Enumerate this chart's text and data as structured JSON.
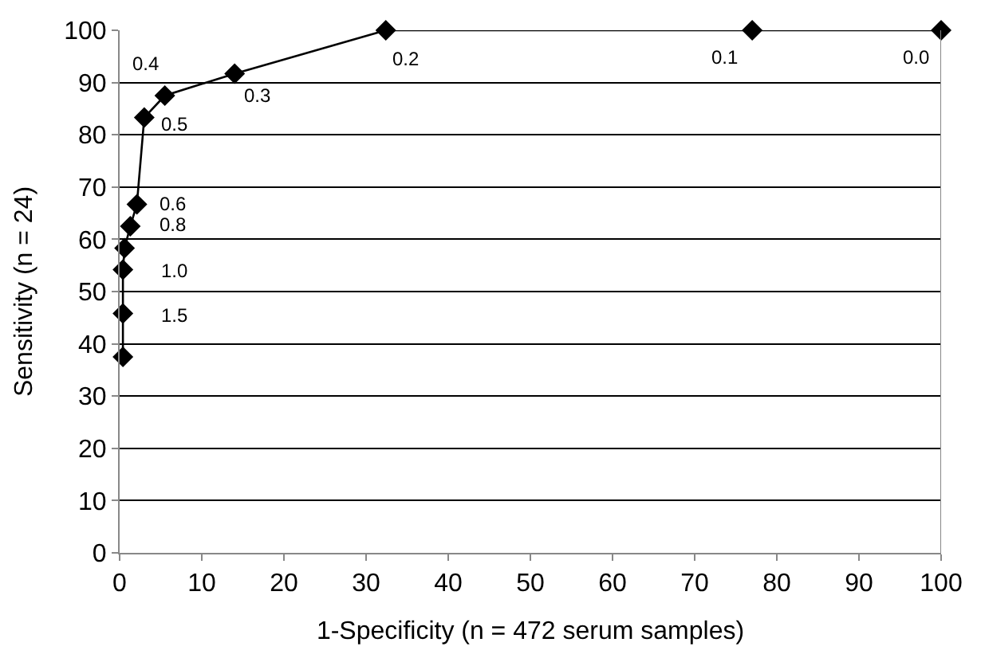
{
  "chart_data": {
    "type": "line",
    "xlabel": "1-Specificity (n = 472 serum samples)",
    "ylabel": "Sensitivity (n = 24)",
    "series": [
      {
        "color": "#000000",
        "x": [
          0.4,
          0.4,
          0.4,
          0.6,
          1.3,
          2.1,
          3.0,
          5.5,
          14,
          32.4,
          77,
          100
        ],
        "values": [
          37.5,
          45.8,
          54.2,
          58.3,
          62.5,
          66.7,
          83.3,
          87.5,
          91.7,
          100,
          100,
          100
        ]
      }
    ],
    "xlim": [
      0,
      100
    ],
    "xticks": [
      0,
      10,
      20,
      30,
      40,
      50,
      60,
      70,
      80,
      90,
      100
    ],
    "ylim": [
      0,
      100
    ],
    "yticks": [
      0,
      10,
      20,
      30,
      40,
      50,
      60,
      70,
      80,
      90,
      100
    ],
    "grid": "y",
    "marker": "diamond",
    "line_style": "solid",
    "annotations": [
      {
        "text": "0.4",
        "x": 5.5,
        "y": 87.5
      },
      {
        "text": "0.5",
        "x": 3.0,
        "y": 83.3
      },
      {
        "text": "0.3",
        "x": 14,
        "y": 91.7
      },
      {
        "text": "0.6",
        "x": 2.1,
        "y": 66.7
      },
      {
        "text": "0.8",
        "x": 1.3,
        "y": 62.5
      },
      {
        "text": "1.0",
        "x": 0.4,
        "y": 54.2
      },
      {
        "text": "1.5",
        "x": 0.4,
        "y": 45.8
      },
      {
        "text": "0.2",
        "x": 32.4,
        "y": 100
      },
      {
        "text": "0.1",
        "x": 77,
        "y": 100
      },
      {
        "text": "0.0",
        "x": 100,
        "y": 100
      }
    ]
  }
}
